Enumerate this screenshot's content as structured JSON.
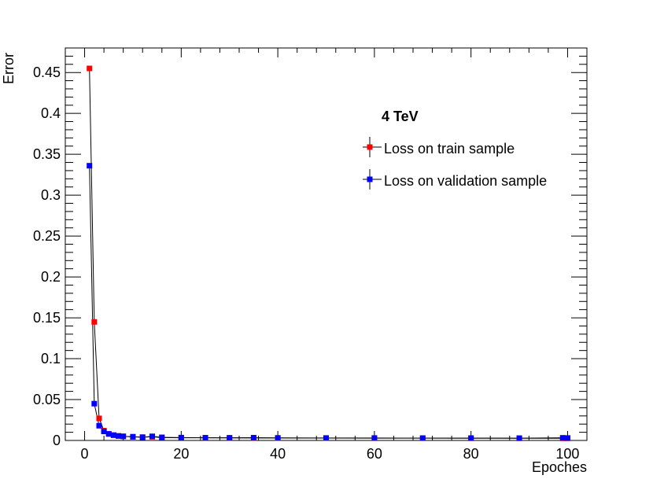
{
  "chart_data": {
    "type": "line",
    "title": "",
    "xlabel": "Epoches",
    "ylabel": "Error",
    "xlim": [
      -4,
      104
    ],
    "ylim": [
      0,
      0.48
    ],
    "xticks": [
      0,
      20,
      40,
      60,
      80,
      100
    ],
    "xtick_labels": [
      "0",
      "20",
      "40",
      "60",
      "80",
      "100"
    ],
    "yticks": [
      0,
      0.05,
      0.1,
      0.15,
      0.2,
      0.25,
      0.3,
      0.35,
      0.4,
      0.45
    ],
    "ytick_labels": [
      "0",
      "0.05",
      "0.1",
      "0.15",
      "0.2",
      "0.25",
      "0.3",
      "0.35",
      "0.4",
      "0.45"
    ],
    "grid": false,
    "legend": {
      "title": "4 TeV",
      "position": "top-right"
    },
    "series": [
      {
        "name": "Loss on train sample",
        "color": "#ff0000",
        "x": [
          1,
          2,
          3,
          4,
          5,
          6,
          7,
          8,
          10,
          12,
          14,
          16,
          20,
          25,
          30,
          35,
          40,
          50,
          60,
          70,
          80,
          90,
          99,
          100
        ],
        "y": [
          0.455,
          0.145,
          0.027,
          0.012,
          0.008,
          0.0065,
          0.0055,
          0.005,
          0.0045,
          0.004,
          0.0045,
          0.0035,
          0.0033,
          0.0032,
          0.0031,
          0.003,
          0.003,
          0.0029,
          0.0028,
          0.0028,
          0.0027,
          0.0027,
          0.0026,
          0.0026
        ]
      },
      {
        "name": "Loss on validation sample",
        "color": "#0000ff",
        "x": [
          1,
          2,
          3,
          4,
          5,
          6,
          7,
          8,
          10,
          12,
          14,
          16,
          20,
          25,
          30,
          35,
          40,
          50,
          60,
          70,
          80,
          90,
          99,
          100
        ],
        "y": [
          0.336,
          0.045,
          0.018,
          0.011,
          0.008,
          0.0065,
          0.0055,
          0.005,
          0.0045,
          0.004,
          0.005,
          0.0038,
          0.0035,
          0.0033,
          0.0032,
          0.0034,
          0.0031,
          0.003,
          0.003,
          0.0029,
          0.0029,
          0.0028,
          0.0032,
          0.003
        ]
      }
    ]
  }
}
